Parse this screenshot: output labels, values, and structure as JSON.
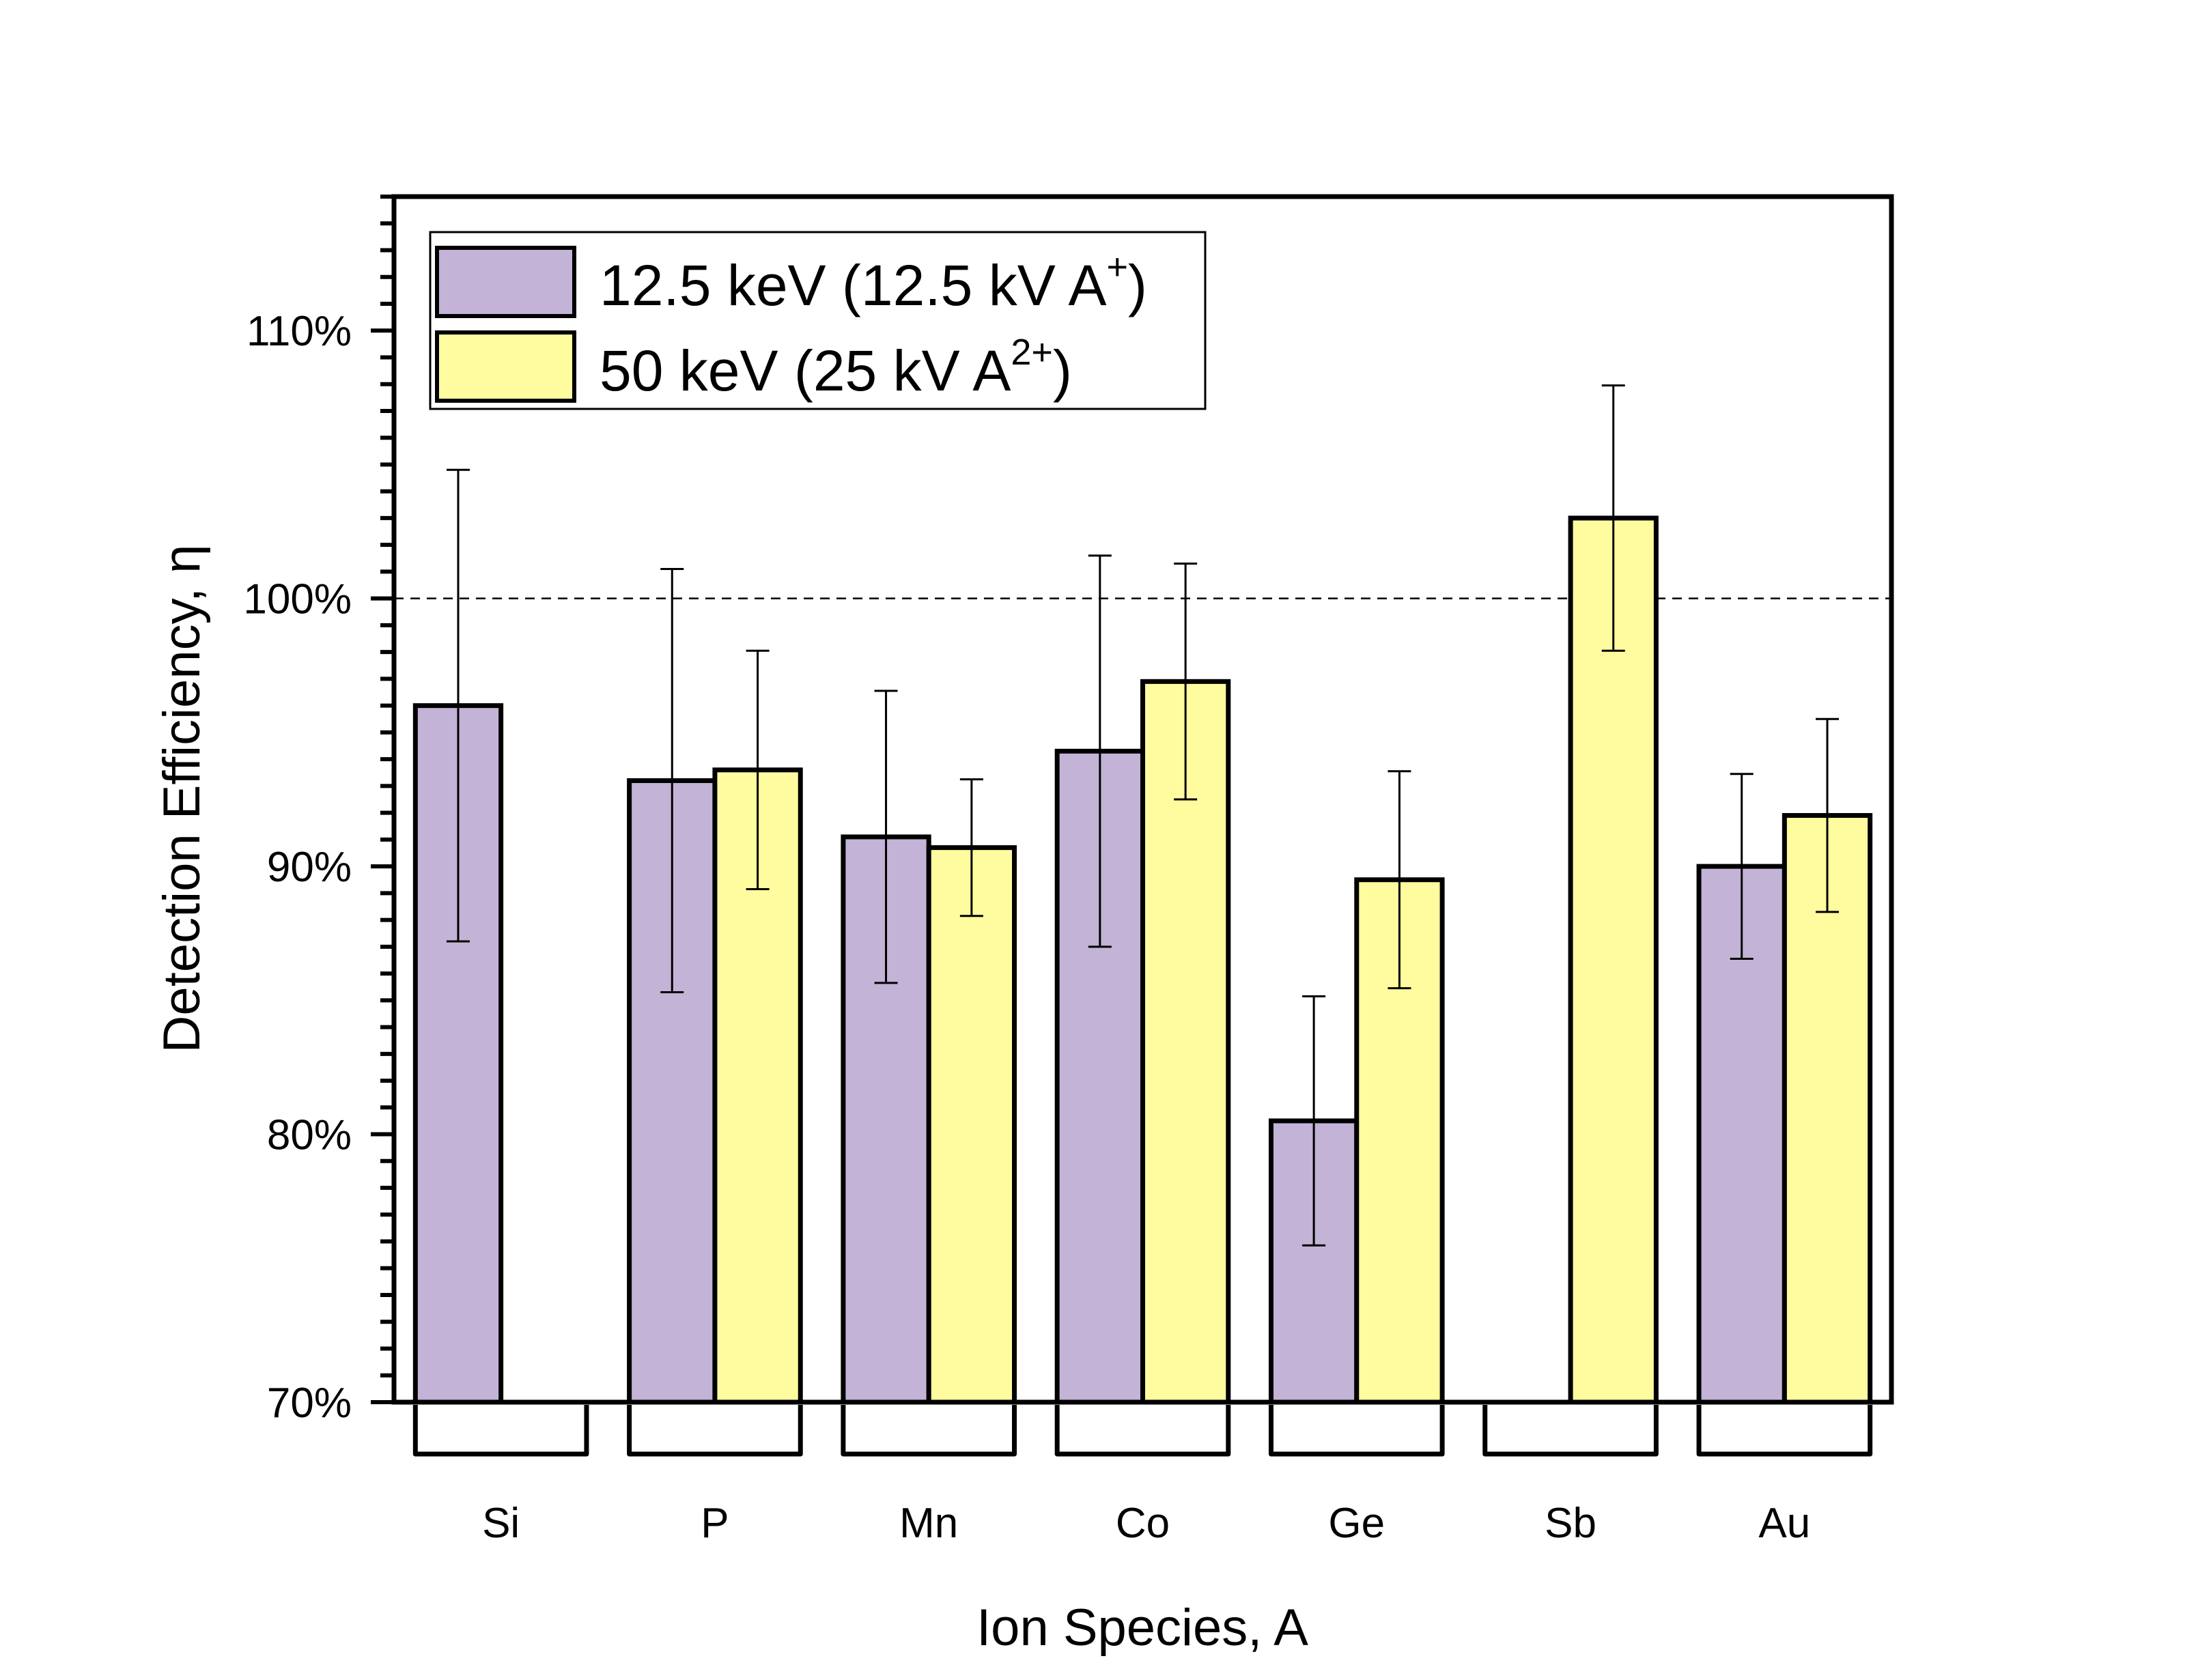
{
  "chart_data": {
    "type": "bar",
    "title": "",
    "xlabel": "Ion Species, A",
    "ylabel": "Detection Efficiency, η",
    "categories": [
      "Si",
      "P",
      "Mn",
      "Co",
      "Ge",
      "Sb",
      "Au"
    ],
    "y_unit": "%",
    "ylim": [
      70,
      115
    ],
    "y_major_ticks": [
      70,
      80,
      90,
      100,
      110
    ],
    "y_tick_labels": [
      "70%",
      "80%",
      "90%",
      "100%",
      "110%"
    ],
    "y_minor_tick_step": 1,
    "reference_line": {
      "y": 100,
      "style": "dashed"
    },
    "grid": false,
    "legend_position": "top-left",
    "series": [
      {
        "name": "12.5 keV (12.5 kV A+)",
        "label_main": "12.5 keV (12.5 kV A",
        "label_sup": "+",
        "label_tail": ")",
        "color": "#C3B3D6",
        "values": [
          96.0,
          93.2,
          91.1,
          94.3,
          80.5,
          null,
          90.0
        ],
        "errors": [
          8.8,
          7.9,
          5.45,
          7.3,
          4.65,
          null,
          3.45
        ]
      },
      {
        "name": "50 keV (25 kV A2+)",
        "label_main": "50 keV (25 kV A",
        "label_sup": "2+",
        "label_tail": ")",
        "color": "#FFFC9F",
        "values": [
          null,
          93.6,
          90.7,
          96.9,
          89.5,
          103.0,
          91.9
        ],
        "errors": [
          null,
          4.45,
          2.55,
          4.4,
          4.05,
          4.95,
          3.6
        ]
      }
    ]
  }
}
